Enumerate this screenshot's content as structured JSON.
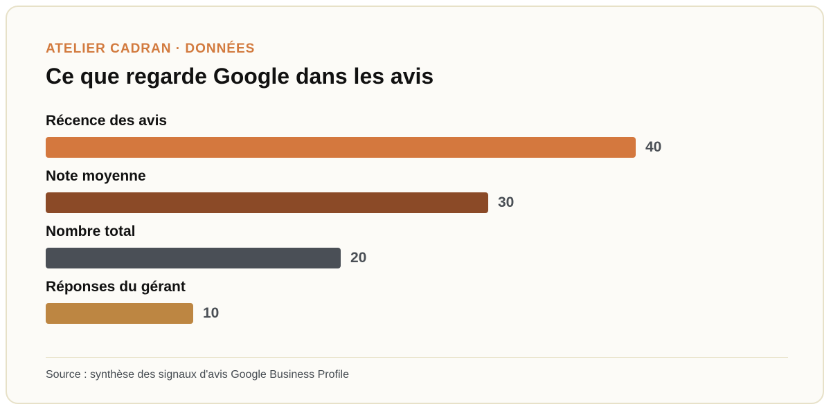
{
  "header": {
    "eyebrow": "ATELIER CADRAN · DONNÉES",
    "title": "Ce que regarde Google dans les avis"
  },
  "chart_data": {
    "type": "bar",
    "orientation": "horizontal",
    "title": "Ce que regarde Google dans les avis",
    "categories": [
      "Récence des avis",
      "Note moyenne",
      "Nombre total",
      "Réponses du gérant"
    ],
    "values": [
      40,
      30,
      20,
      10
    ],
    "value_labels": [
      "40",
      "30",
      "20",
      "10"
    ],
    "colors": [
      "#d4783e",
      "#8b4a27",
      "#4a4f56",
      "#bd8642"
    ],
    "xlim": [
      0,
      50
    ],
    "grid": false,
    "legend": "none"
  },
  "footer": {
    "source": "Source : synthèse des signaux d'avis Google Business Profile"
  }
}
